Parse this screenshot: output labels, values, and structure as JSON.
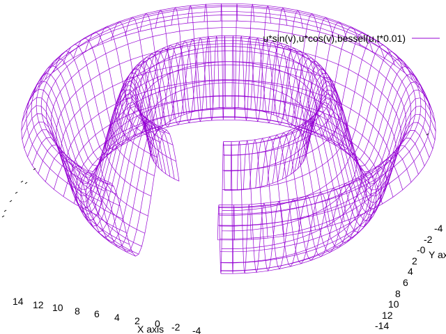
{
  "chart_data": {
    "type": "surface",
    "title": "",
    "legend": {
      "entries": [
        {
          "label": "u*sin(v),u*cos(v),bessel(u,t*0.01)",
          "color": "#9400d3"
        }
      ],
      "placement": "top-right"
    },
    "function": {
      "x": "u*sin(v)",
      "y": "u*cos(v)",
      "z": "bessel(u,t*0.01)"
    },
    "x_axis": {
      "label": "X axis",
      "ticks": [
        "14",
        "12",
        "10",
        "8",
        "6",
        "4",
        "2",
        "0",
        "-2",
        "-4"
      ]
    },
    "y_axis": {
      "label": "Y axis",
      "ticks": [
        "-4",
        "-2",
        "-0",
        "2",
        "4",
        "6",
        "8",
        "10",
        "12",
        "-14"
      ]
    },
    "z_axis": {
      "label": "",
      "ticks_visible": false
    },
    "grid": false,
    "surface_style": "mesh",
    "u_range": [
      5.5,
      14.5
    ],
    "surface_color": "#9400d3"
  }
}
